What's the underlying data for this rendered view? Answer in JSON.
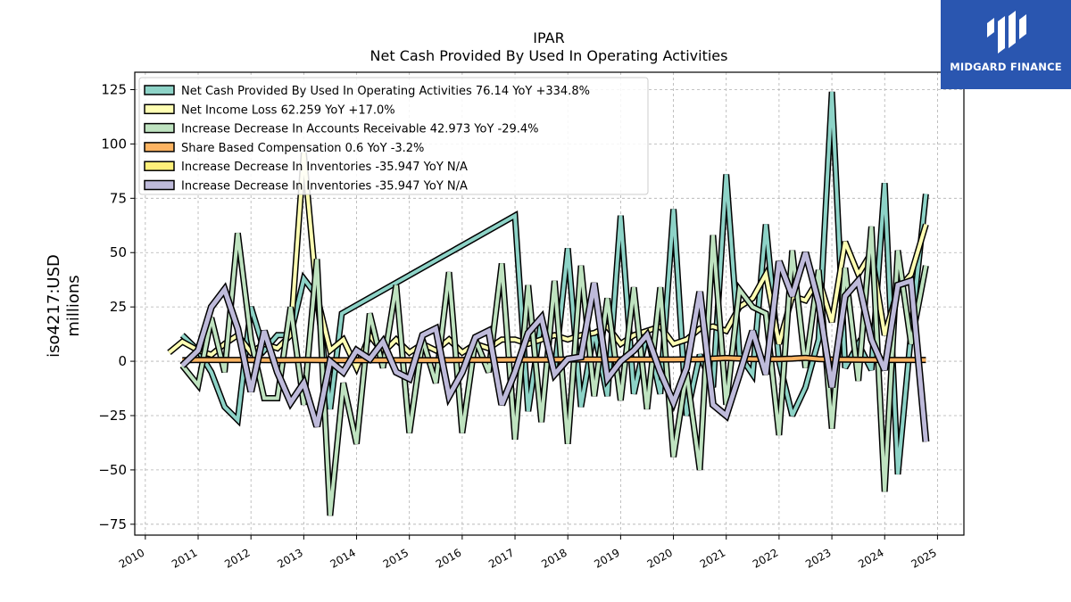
{
  "brand": {
    "name": "MIDGARD FINANCE",
    "color": "#2a56b0"
  },
  "chart_data": {
    "type": "line",
    "title": "IPAR",
    "subtitle": "Net Cash Provided By Used In Operating Activities",
    "ylabel_line1": "iso4217:USD",
    "ylabel_line2": "millions",
    "xlim": [
      2009.8,
      2025.5
    ],
    "ylim": [
      -80,
      133
    ],
    "yticks": [
      -75,
      -50,
      -25,
      0,
      25,
      50,
      75,
      100,
      125
    ],
    "xticks": [
      2010,
      2011,
      2012,
      2013,
      2014,
      2015,
      2016,
      2017,
      2018,
      2019,
      2020,
      2021,
      2022,
      2023,
      2024,
      2025
    ],
    "grid": true,
    "legend_position": "top-left",
    "series": [
      {
        "name": "Net Cash Provided By Used In Operating Activities  76.14 YoY +334.8%",
        "color": "#8dd3c7",
        "width": 4,
        "x": [
          2010.7,
          2011.0,
          2011.25,
          2011.5,
          2011.75,
          2012.0,
          2012.25,
          2012.5,
          2012.75,
          2013.0,
          2013.25,
          2013.5,
          2013.72,
          2017.0,
          2017.25,
          2017.5,
          2017.75,
          2018.0,
          2018.25,
          2018.5,
          2018.75,
          2019.0,
          2019.25,
          2019.5,
          2019.75,
          2020.0,
          2020.25,
          2020.5,
          2020.75,
          2021.0,
          2021.25,
          2021.5,
          2021.75,
          2022.0,
          2022.25,
          2022.5,
          2022.75,
          2023.0,
          2023.25,
          2023.5,
          2023.75,
          2024.0,
          2024.25,
          2024.5,
          2024.78
        ],
        "y": [
          12,
          5,
          -5,
          -21,
          -27,
          25,
          5,
          12,
          12,
          38,
          30,
          -22,
          22,
          67,
          -23,
          19,
          -5,
          52,
          -21,
          14,
          -16,
          67,
          -15,
          13,
          -15,
          70,
          -25,
          3,
          -12,
          86,
          3,
          -6,
          63,
          0,
          -25,
          -12,
          10,
          124,
          -3,
          8,
          -4,
          82,
          -52,
          13,
          77
        ]
      },
      {
        "name": "Net Income Loss  62.259 YoY +17.0%",
        "color": "#ffffb3",
        "width": 4,
        "x": [
          2010.45,
          2010.7,
          2011.0,
          2011.25,
          2011.5,
          2011.75,
          2012.0,
          2012.25,
          2012.5,
          2012.75,
          2013.0,
          2013.25,
          2013.5,
          2013.75,
          2014.0,
          2014.25,
          2014.5,
          2014.75,
          2015.0,
          2015.25,
          2015.5,
          2015.75,
          2016.0,
          2016.25,
          2016.5,
          2016.75,
          2017.0,
          2017.25,
          2017.5,
          2017.75,
          2018.0,
          2018.25,
          2018.5,
          2018.75,
          2019.0,
          2019.25,
          2019.5,
          2019.75,
          2020.0,
          2020.25,
          2020.5,
          2020.75,
          2021.0,
          2021.25,
          2021.5,
          2021.75,
          2022.0,
          2022.25,
          2022.5,
          2022.75,
          2023.0,
          2023.25,
          2023.5,
          2023.75,
          2024.0,
          2024.25,
          2024.5,
          2024.78
        ],
        "y": [
          4,
          9,
          5,
          3,
          8,
          12,
          4,
          8,
          6,
          12,
          96,
          30,
          5,
          10,
          -3,
          12,
          4,
          10,
          4,
          8,
          5,
          10,
          4,
          8,
          6,
          10,
          10,
          8,
          10,
          12,
          10,
          12,
          13,
          16,
          8,
          12,
          14,
          16,
          8,
          10,
          15,
          16,
          14,
          25,
          29,
          40,
          8,
          30,
          28,
          38,
          18,
          55,
          40,
          50,
          12,
          33,
          40,
          63
        ]
      },
      {
        "name": "Increase Decrease In Accounts Receivable  42.973 YoY -29.4%",
        "color": "#bfe3c0",
        "width": 4,
        "x": [
          2010.7,
          2011.0,
          2011.25,
          2011.5,
          2011.75,
          2012.0,
          2012.25,
          2012.5,
          2012.75,
          2013.0,
          2013.25,
          2013.5,
          2013.75,
          2014.0,
          2014.25,
          2014.5,
          2014.75,
          2015.0,
          2015.25,
          2015.5,
          2015.75,
          2016.0,
          2016.25,
          2016.5,
          2016.75,
          2017.0,
          2017.25,
          2017.5,
          2017.75,
          2018.0,
          2018.25,
          2018.5,
          2018.75,
          2019.0,
          2019.25,
          2019.5,
          2019.75,
          2020.0,
          2020.25,
          2020.5,
          2020.75,
          2021.0,
          2021.25,
          2021.5,
          2021.75,
          2022.0,
          2022.25,
          2022.5,
          2022.75,
          2023.0,
          2023.25,
          2023.5,
          2023.75,
          2024.0,
          2024.25,
          2024.5,
          2024.78
        ],
        "y": [
          -2,
          -11,
          20,
          -5,
          59,
          10,
          -17,
          -17,
          25,
          -20,
          47,
          -71,
          -10,
          -38,
          22,
          -3,
          35,
          -33,
          10,
          -10,
          41,
          -33,
          10,
          -5,
          45,
          -36,
          35,
          -28,
          37,
          -38,
          44,
          -16,
          29,
          -18,
          34,
          -22,
          34,
          -44,
          -5,
          -50,
          58,
          -20,
          33,
          25,
          22,
          -34,
          51,
          -3,
          42,
          -31,
          43,
          -9,
          62,
          -60,
          51,
          8,
          44
        ]
      },
      {
        "name": "Share Based Compensation  0.6 YoY -3.2%",
        "color": "#fdb462",
        "width": 4,
        "x": [
          2010.7,
          2011.0,
          2011.5,
          2012.0,
          2012.5,
          2013.0,
          2013.5,
          2014.0,
          2014.5,
          2015.0,
          2015.5,
          2016.0,
          2016.5,
          2017.0,
          2017.5,
          2018.0,
          2018.5,
          2019.0,
          2019.5,
          2020.0,
          2020.5,
          2021.0,
          2021.5,
          2022.0,
          2022.25,
          2022.5,
          2022.75,
          2023.0,
          2023.5,
          2024.0,
          2024.5,
          2024.78
        ],
        "y": [
          0.5,
          0.6,
          0.6,
          0.6,
          0.5,
          0.6,
          0.5,
          0.5,
          0.5,
          0.5,
          0.5,
          0.6,
          0.6,
          0.7,
          0.7,
          0.8,
          0.8,
          0.8,
          0.8,
          0.8,
          0.9,
          1.5,
          1.0,
          1.0,
          1.2,
          1.6,
          1.0,
          0.8,
          0.7,
          0.6,
          0.6,
          0.6
        ]
      },
      {
        "name": "Increase Decrease In Inventories  -35.947 YoY N/A",
        "color": "#fff07a",
        "width": 4,
        "x": [
          2010.7,
          2011.0,
          2011.25,
          2011.5,
          2011.75,
          2012.0,
          2012.25,
          2012.5,
          2012.75,
          2013.0,
          2013.25,
          2013.5,
          2013.75,
          2014.0,
          2014.25,
          2014.5,
          2014.75,
          2015.0,
          2015.25,
          2015.5,
          2015.75,
          2016.0,
          2016.25,
          2016.5,
          2016.75,
          2017.0,
          2017.25,
          2017.5,
          2017.75,
          2018.0,
          2018.25,
          2018.5,
          2018.75,
          2019.0,
          2019.25,
          2019.5,
          2019.75,
          2020.0,
          2020.25,
          2020.5,
          2020.75,
          2021.0,
          2021.25,
          2021.5,
          2021.75,
          2022.0,
          2022.25,
          2022.5,
          2022.75,
          2023.0,
          2023.25,
          2023.5,
          2023.75,
          2024.0,
          2024.25,
          2024.5,
          2024.78
        ],
        "y": [
          -2,
          5,
          25,
          33,
          15,
          -14,
          14,
          -5,
          -19,
          -10,
          -30,
          0,
          -5,
          5,
          1,
          9,
          -5,
          -8,
          12,
          15,
          -16,
          -5,
          11,
          14,
          -20,
          -5,
          13,
          20,
          -6,
          1,
          2,
          36,
          -8,
          0,
          5,
          12,
          -5,
          -19,
          -3,
          32,
          -20,
          -25,
          -6,
          14,
          -6,
          46,
          30,
          50,
          27,
          -12,
          30,
          37,
          10,
          -4,
          35,
          37,
          -37
        ]
      },
      {
        "name": "Increase Decrease In Inventories  -35.947 YoY N/A",
        "color": "#bebada",
        "width": 5,
        "x": [
          2010.7,
          2011.0,
          2011.25,
          2011.5,
          2011.75,
          2012.0,
          2012.25,
          2012.5,
          2012.75,
          2013.0,
          2013.25,
          2013.5,
          2013.75,
          2014.0,
          2014.25,
          2014.5,
          2014.75,
          2015.0,
          2015.25,
          2015.5,
          2015.75,
          2016.0,
          2016.25,
          2016.5,
          2016.75,
          2017.0,
          2017.25,
          2017.5,
          2017.75,
          2018.0,
          2018.25,
          2018.5,
          2018.75,
          2019.0,
          2019.25,
          2019.5,
          2019.75,
          2020.0,
          2020.25,
          2020.5,
          2020.75,
          2021.0,
          2021.25,
          2021.5,
          2021.75,
          2022.0,
          2022.25,
          2022.5,
          2022.75,
          2023.0,
          2023.25,
          2023.5,
          2023.75,
          2024.0,
          2024.25,
          2024.5,
          2024.78
        ],
        "y": [
          -2,
          5,
          25,
          33,
          15,
          -14,
          14,
          -5,
          -19,
          -10,
          -30,
          0,
          -5,
          5,
          1,
          9,
          -5,
          -8,
          12,
          15,
          -16,
          -5,
          11,
          14,
          -20,
          -5,
          13,
          20,
          -6,
          1,
          2,
          36,
          -8,
          0,
          5,
          12,
          -5,
          -19,
          -3,
          32,
          -20,
          -25,
          -6,
          14,
          -6,
          46,
          30,
          50,
          27,
          -12,
          30,
          37,
          10,
          -4,
          35,
          37,
          -37
        ]
      }
    ]
  }
}
